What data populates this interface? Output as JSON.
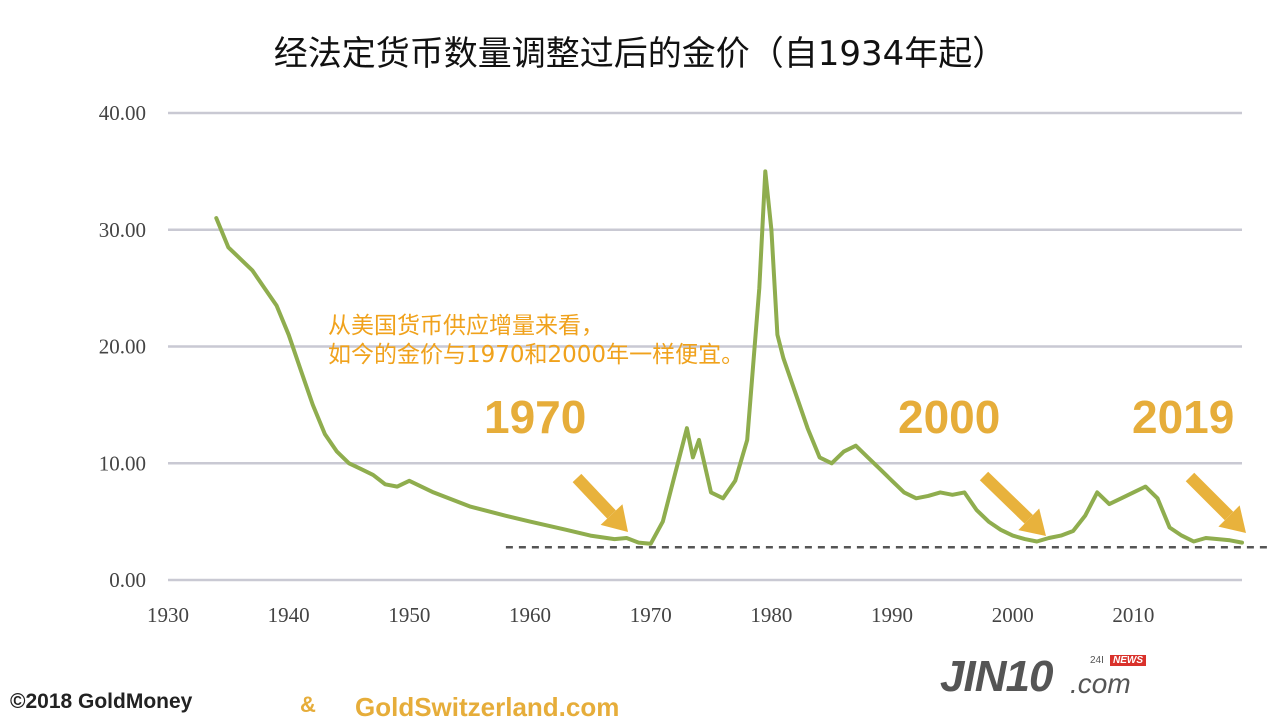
{
  "title": "经法定货币数量调整过后的金价（自1934年起）",
  "annotation": {
    "line1": "从美国货币供应增量来看，",
    "line2": "如今的金价与1970和2000年一样便宜。"
  },
  "highlight_years": [
    "1970",
    "2000",
    "2019"
  ],
  "footer": {
    "copyright": "©2018 GoldMoney",
    "amp": "&",
    "site": "GoldSwitzerland.com"
  },
  "brand": {
    "main": "JIN10",
    "com": ".com",
    "superscript": "24I",
    "news": "NEWS"
  },
  "colors": {
    "line": "#8fad4e",
    "accent": "#f0a21c",
    "arrow": "#e8b23c",
    "grid": "#c9c9d3",
    "reference_line": "#555555"
  },
  "chart_data": {
    "type": "line",
    "title": "经法定货币数量调整过后的金价（自1934年起）",
    "xlim": [
      1930,
      2019
    ],
    "ylim": [
      0,
      40
    ],
    "x_ticks": [
      "1930",
      "1940",
      "1950",
      "1960",
      "1970",
      "1980",
      "1990",
      "2000",
      "2010"
    ],
    "y_ticks": [
      "0.00",
      "10.00",
      "20.00",
      "30.00",
      "40.00"
    ],
    "grid": true,
    "reference_line": {
      "y": 2.8,
      "x_start": 1958,
      "x_end": 2019,
      "style": "dashed"
    },
    "series": [
      {
        "x": [
          1934,
          1935,
          1936,
          1937,
          1938,
          1939,
          1940,
          1941,
          1942,
          1943,
          1944,
          1945,
          1946,
          1947,
          1948,
          1949,
          1950,
          1952,
          1955,
          1958,
          1960,
          1963,
          1965,
          1967,
          1968,
          1969,
          1970,
          1971,
          1972,
          1973,
          1973.5,
          1974,
          1975,
          1976,
          1977,
          1978,
          1979,
          1979.5,
          1980,
          1980.5,
          1981,
          1982,
          1983,
          1984,
          1985,
          1986,
          1987,
          1988,
          1989,
          1990,
          1991,
          1992,
          1993,
          1994,
          1995,
          1996,
          1997,
          1998,
          1999,
          2000,
          2001,
          2002,
          2003,
          2004,
          2005,
          2006,
          2007,
          2008,
          2009,
          2010,
          2011,
          2012,
          2013,
          2014,
          2015,
          2016,
          2017,
          2018,
          2019
        ],
        "y": [
          31,
          28.5,
          27.5,
          26.5,
          25,
          23.5,
          21,
          18,
          15,
          12.5,
          11,
          10,
          9.5,
          9,
          8.2,
          8,
          8.5,
          7.5,
          6.3,
          5.5,
          5,
          4.3,
          3.8,
          3.5,
          3.6,
          3.2,
          3.1,
          5,
          9,
          13,
          10.5,
          12,
          7.5,
          7,
          8.5,
          12,
          25,
          35,
          30,
          21,
          19,
          16,
          13,
          10.5,
          10,
          11,
          11.5,
          10.5,
          9.5,
          8.5,
          7.5,
          7,
          7.2,
          7.5,
          7.3,
          7.5,
          6,
          5,
          4.3,
          3.8,
          3.5,
          3.3,
          3.6,
          3.8,
          4.2,
          5.5,
          7.5,
          6.5,
          7,
          7.5,
          8,
          7,
          4.5,
          3.8,
          3.3,
          3.6,
          3.5,
          3.4,
          3.2
        ]
      }
    ]
  }
}
